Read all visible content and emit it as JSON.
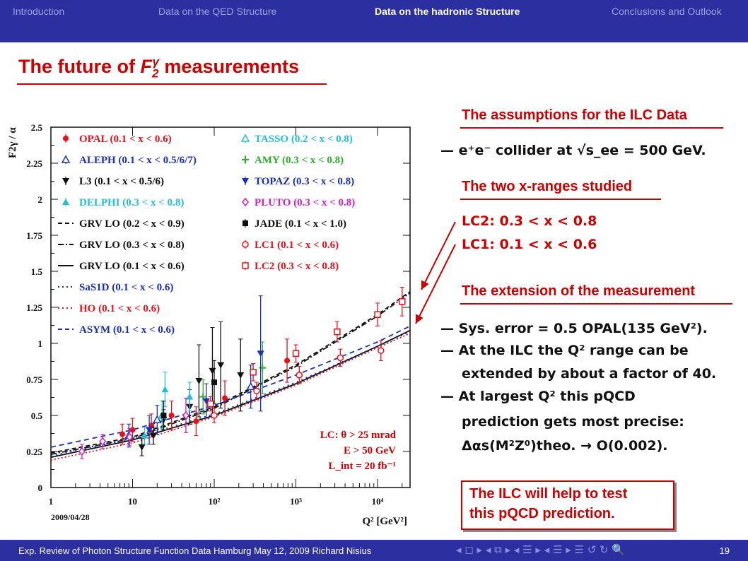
{
  "nav": {
    "items": [
      "Introduction",
      "Data on the QED Structure",
      "Data on the hadronic Structure",
      "Conclusions and Outlook"
    ],
    "active_index": 2
  },
  "title": {
    "prefix": "The future of ",
    "symbol": "F",
    "sub": "2",
    "sup": "γ",
    "suffix": " measurements"
  },
  "right": {
    "h1": "The assumptions for the ILC Data",
    "collider_line": "— e⁺e⁻  collider at √s_ee = 500 GeV.",
    "h2": "The two x-ranges studied",
    "lc2": "LC2: 0.3 < x < 0.8",
    "lc1": "LC1: 0.1 < x < 0.6",
    "h3": "The extension of the measurement",
    "b1": "— Sys. error = 0.5 OPAL(135 GeV²).",
    "b2a": "— At the ILC the Q² range can be",
    "b2b": "extended by about a factor of 40.",
    "b3a": "— At largest Q² this pQCD",
    "b3b": "prediction gets most precise:",
    "b3c": "Δαs(M²Z⁰)theo. → O(0.002).",
    "box1": "The ILC will help to test",
    "box2": "this pQCD prediction."
  },
  "footer": {
    "text": "Exp. Review of Photon Structure Function Data  Hamburg  May 12, 2009  Richard Nisius",
    "nav_symbols": "◂ ◻ ▸ ◂ ⧉ ▸ ◂ ☰ ▸ ◂ ☰ ▸   ☰   ↺ ↻ 🔍",
    "page": "19"
  },
  "chart_data": {
    "type": "scatter",
    "ylabel": "F2γ / α",
    "xlabel": "Q² [GeV²]",
    "x_scale": "log",
    "xlim": [
      1,
      25000
    ],
    "ylim": [
      0,
      2.5
    ],
    "x_ticks": [
      "1",
      "10",
      "10²",
      "10³",
      "10⁴"
    ],
    "y_ticks": [
      "0",
      "0.25",
      "0.5",
      "0.75",
      "1",
      "1.25",
      "1.5",
      "1.75",
      "2",
      "2.25",
      "2.5"
    ],
    "date": "2009/04/28",
    "annotation": [
      "LC: θ > 25 mrad",
      "E > 50 GeV",
      "L_int = 20 fb⁻¹"
    ],
    "legend_left": [
      {
        "label": "OPAL (0.1 < x < 0.6)",
        "color": "#e8101a",
        "marker": "circle-filled"
      },
      {
        "label": "ALEPH (0.1 < x < 0.5/6/7)",
        "color": "#1a2fc0",
        "marker": "triangle-open"
      },
      {
        "label": "L3 (0.1 < x < 0.5/6)",
        "color": "#111111",
        "marker": "triangle-down-filled"
      },
      {
        "label": "DELPHI (0.3 < x < 0.8)",
        "color": "#22c0d8",
        "marker": "triangle-filled"
      },
      {
        "label": "GRV LO (0.2 < x < 0.9)",
        "color": "#111111",
        "marker": "dashed"
      },
      {
        "label": "GRV LO (0.3 < x < 0.8)",
        "color": "#111111",
        "marker": "dashdot"
      },
      {
        "label": "GRV LO (0.1 < x < 0.6)",
        "color": "#111111",
        "marker": "solid"
      },
      {
        "label": "SaS1D (0.1 < x < 0.6)",
        "color": "#1a2fc0",
        "marker": "dotted"
      },
      {
        "label": "HO (0.1 < x < 0.6)",
        "color": "#e8101a",
        "marker": "dotted"
      },
      {
        "label": "ASYM (0.1 < x < 0.6)",
        "color": "#1a2fc0",
        "marker": "dashed"
      }
    ],
    "legend_right": [
      {
        "label": "TASSO (0.2 < x < 0.8)",
        "color": "#22c0d8",
        "marker": "triangle-open"
      },
      {
        "label": "AMY (0.3 < x < 0.8)",
        "color": "#2ab02a",
        "marker": "star"
      },
      {
        "label": "TOPAZ (0.3 < x < 0.8)",
        "color": "#1a2fc0",
        "marker": "triangle-down-filled"
      },
      {
        "label": "PLUTO (0.3 < x < 0.8)",
        "color": "#d020c8",
        "marker": "diamond"
      },
      {
        "label": "JADE (0.1 < x < 1.0)",
        "color": "#111111",
        "marker": "square-filled"
      },
      {
        "label": "LC1 (0.1 < x < 0.6)",
        "color": "#e8101a",
        "marker": "circle-open"
      },
      {
        "label": "LC2 (0.3 < x < 0.8)",
        "color": "#e8101a",
        "marker": "square-open"
      }
    ],
    "curves": [
      {
        "name": "GRV LO (0.2 < x < 0.9)",
        "color": "#111111",
        "dash": "6,4",
        "x": [
          1,
          10,
          100,
          1000,
          10000,
          25000
        ],
        "y": [
          0.24,
          0.35,
          0.56,
          0.85,
          1.2,
          1.36
        ]
      },
      {
        "name": "GRV LO (0.3 < x < 0.8)",
        "color": "#111111",
        "dash": "8,3,2,3",
        "x": [
          1,
          10,
          100,
          1000,
          10000,
          25000
        ],
        "y": [
          0.23,
          0.34,
          0.55,
          0.84,
          1.19,
          1.35
        ]
      },
      {
        "name": "GRV LO (0.1 < x < 0.6)",
        "color": "#111111",
        "dash": "",
        "x": [
          1,
          10,
          100,
          1000,
          10000,
          25000
        ],
        "y": [
          0.21,
          0.33,
          0.5,
          0.72,
          0.98,
          1.09
        ]
      },
      {
        "name": "SaS1D (0.1 < x < 0.6)",
        "color": "#1a2fc0",
        "dash": "2,5",
        "x": [
          1,
          10,
          100,
          1000,
          10000,
          25000
        ],
        "y": [
          0.22,
          0.34,
          0.51,
          0.73,
          0.98,
          1.08
        ]
      },
      {
        "name": "HO (0.1 < x < 0.6)",
        "color": "#e8101a",
        "dash": "2,3",
        "x": [
          1,
          10,
          100,
          1000,
          10000,
          25000
        ],
        "y": [
          0.19,
          0.31,
          0.49,
          0.71,
          0.97,
          1.07
        ]
      },
      {
        "name": "ASYM (0.1 < x < 0.6)",
        "color": "#1a2fc0",
        "dash": "7,5",
        "x": [
          1,
          10,
          100,
          1000,
          10000,
          25000
        ],
        "y": [
          0.28,
          0.4,
          0.57,
          0.78,
          1.01,
          1.12
        ]
      }
    ],
    "points": [
      {
        "exp": "OPAL",
        "x": 7.5,
        "y": 0.37,
        "e": 0.07
      },
      {
        "exp": "OPAL",
        "x": 10,
        "y": 0.4,
        "e": 0.08
      },
      {
        "exp": "OPAL",
        "x": 17,
        "y": 0.43,
        "e": 0.08
      },
      {
        "exp": "OPAL",
        "x": 30,
        "y": 0.5,
        "e": 0.1
      },
      {
        "exp": "OPAL",
        "x": 60,
        "y": 0.46,
        "e": 0.1
      },
      {
        "exp": "OPAL",
        "x": 135,
        "y": 0.62,
        "e": 0.12
      },
      {
        "exp": "OPAL",
        "x": 780,
        "y": 0.88,
        "e": 0.15
      },
      {
        "exp": "ALEPH",
        "x": 9,
        "y": 0.36,
        "e": 0.08
      },
      {
        "exp": "ALEPH",
        "x": 20,
        "y": 0.47,
        "e": 0.1
      },
      {
        "exp": "ALEPH",
        "x": 280,
        "y": 0.7,
        "e": 0.15
      },
      {
        "exp": "L3",
        "x": 13,
        "y": 0.28,
        "e": 0.06
      },
      {
        "exp": "L3",
        "x": 18,
        "y": 0.36,
        "e": 0.06
      },
      {
        "exp": "L3",
        "x": 24,
        "y": 0.47,
        "e": 0.07
      },
      {
        "exp": "L3",
        "x": 50,
        "y": 0.56,
        "e": 0.12
      },
      {
        "exp": "L3",
        "x": 65,
        "y": 0.74,
        "e": 0.25
      },
      {
        "exp": "L3",
        "x": 95,
        "y": 0.81,
        "e": 0.3
      },
      {
        "exp": "L3",
        "x": 120,
        "y": 0.85,
        "e": 0.3
      },
      {
        "exp": "L3",
        "x": 210,
        "y": 0.78,
        "e": 0.25
      },
      {
        "exp": "DELPHI",
        "x": 14,
        "y": 0.36,
        "e": 0.06
      },
      {
        "exp": "DELPHI",
        "x": 25,
        "y": 0.68,
        "e": 0.12
      },
      {
        "exp": "DELPHI",
        "x": 50,
        "y": 0.63,
        "e": 0.1
      },
      {
        "exp": "TASSO",
        "x": 23,
        "y": 0.5,
        "e": 0.1
      },
      {
        "exp": "AMY",
        "x": 73,
        "y": 0.63,
        "e": 0.12
      },
      {
        "exp": "AMY",
        "x": 390,
        "y": 0.83,
        "e": 0.18
      },
      {
        "exp": "TOPAZ",
        "x": 16,
        "y": 0.4,
        "e": 0.1
      },
      {
        "exp": "TOPAZ",
        "x": 80,
        "y": 0.6,
        "e": 0.12
      },
      {
        "exp": "TOPAZ",
        "x": 370,
        "y": 0.93,
        "e": 0.4
      },
      {
        "exp": "PLUTO",
        "x": 2.4,
        "y": 0.25,
        "e": 0.05
      },
      {
        "exp": "PLUTO",
        "x": 4.3,
        "y": 0.32,
        "e": 0.05
      },
      {
        "exp": "PLUTO",
        "x": 9.2,
        "y": 0.35,
        "e": 0.06
      },
      {
        "exp": "PLUTO",
        "x": 45,
        "y": 0.5,
        "e": 0.12
      },
      {
        "exp": "JADE",
        "x": 24,
        "y": 0.5,
        "e": 0.1
      },
      {
        "exp": "JADE",
        "x": 100,
        "y": 0.73,
        "e": 0.15
      },
      {
        "exp": "LC1",
        "x": 100,
        "y": 0.5,
        "e": 0.05
      },
      {
        "exp": "LC1",
        "x": 330,
        "y": 0.67,
        "e": 0.06
      },
      {
        "exp": "LC1",
        "x": 1100,
        "y": 0.78,
        "e": 0.06
      },
      {
        "exp": "LC1",
        "x": 3500,
        "y": 0.9,
        "e": 0.06
      },
      {
        "exp": "LC1",
        "x": 11000,
        "y": 0.95,
        "e": 0.07
      },
      {
        "exp": "LC2",
        "x": 90,
        "y": 0.58,
        "e": 0.05
      },
      {
        "exp": "LC2",
        "x": 300,
        "y": 0.8,
        "e": 0.06
      },
      {
        "exp": "LC2",
        "x": 1000,
        "y": 0.93,
        "e": 0.06
      },
      {
        "exp": "LC2",
        "x": 3200,
        "y": 1.08,
        "e": 0.07
      },
      {
        "exp": "LC2",
        "x": 10000,
        "y": 1.2,
        "e": 0.08
      },
      {
        "exp": "LC2",
        "x": 20000,
        "y": 1.29,
        "e": 0.1
      }
    ]
  }
}
